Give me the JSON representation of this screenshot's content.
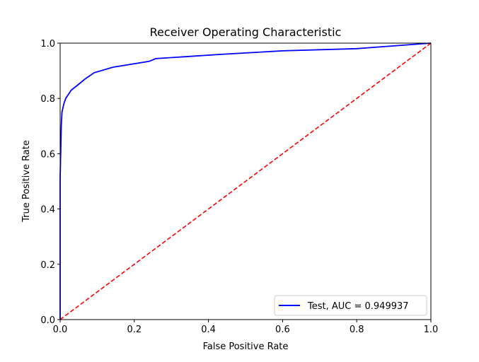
{
  "chart_data": {
    "type": "line",
    "title": "Receiver Operating Characteristic",
    "xlabel": "False Positive Rate",
    "ylabel": "True Positive Rate",
    "xlim": [
      0,
      1
    ],
    "ylim": [
      0,
      1
    ],
    "xticks": [
      "0.0",
      "0.2",
      "0.4",
      "0.6",
      "0.8",
      "1.0"
    ],
    "yticks": [
      "0.0",
      "0.2",
      "0.4",
      "0.6",
      "0.8",
      "1.0"
    ],
    "grid": false,
    "legend_placement": "lower-right",
    "series": [
      {
        "name": "Test, AUC = 0.949937",
        "color": "#0000ff",
        "style": "solid",
        "x": [
          0,
          0,
          0.003,
          0.005,
          0.01,
          0.015,
          0.03,
          0.048,
          0.067,
          0.092,
          0.143,
          0.24,
          0.258,
          0.43,
          0.6,
          0.8,
          0.9,
          1.0
        ],
        "y": [
          0,
          0.51,
          0.7,
          0.75,
          0.78,
          0.8,
          0.83,
          0.849,
          0.87,
          0.893,
          0.913,
          0.934,
          0.944,
          0.959,
          0.972,
          0.98,
          0.99,
          1.0
        ]
      },
      {
        "color": "#ff0000",
        "style": "dashed",
        "x": [
          0,
          1
        ],
        "y": [
          0,
          1
        ]
      }
    ]
  }
}
